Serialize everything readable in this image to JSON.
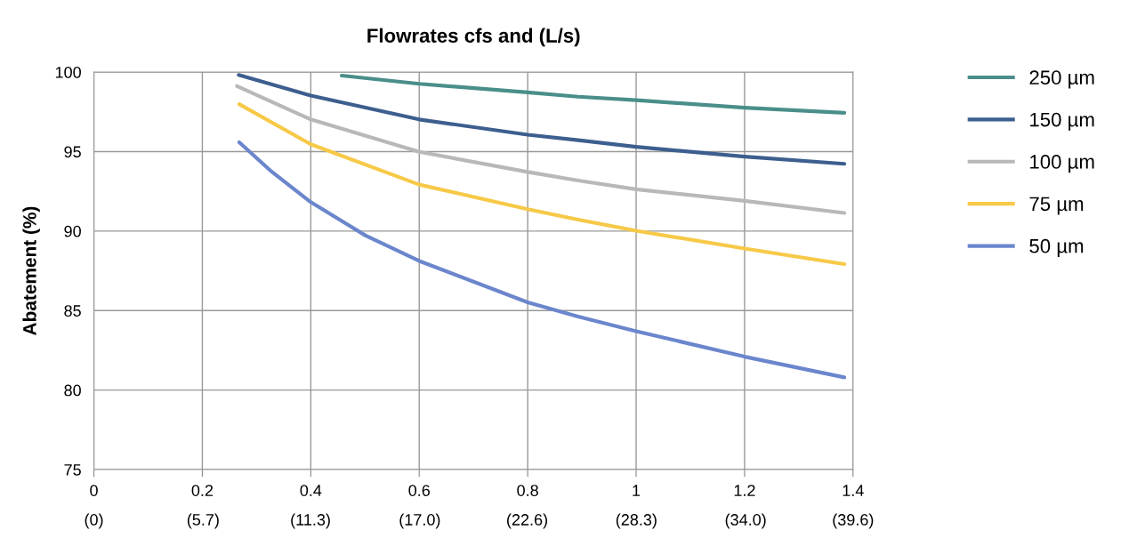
{
  "chart_data": {
    "type": "line",
    "title": "Flowrates cfs and (L/s)",
    "ylabel": "Abatement (%)",
    "xlim": [
      0,
      1.4
    ],
    "xticks": [
      0,
      0.2,
      0.4,
      0.6,
      0.8,
      1,
      1.2,
      1.4
    ],
    "x2lim": [
      0,
      39.6
    ],
    "x2ticks": [
      {
        "value": 0,
        "label": "(0)"
      },
      {
        "value": 5.7,
        "label": "(5.7)"
      },
      {
        "value": 11.3,
        "label": "(11.3)"
      },
      {
        "value": 17.0,
        "label": "(17.0)"
      },
      {
        "value": 22.6,
        "label": "(22.6)"
      },
      {
        "value": 28.3,
        "label": "(28.3)"
      },
      {
        "value": 34.0,
        "label": "(34.0)"
      },
      {
        "value": 39.6,
        "label": "(39.6)"
      }
    ],
    "ylim": [
      75,
      100
    ],
    "yticks": [
      75,
      80,
      85,
      90,
      95,
      100
    ],
    "grid": true,
    "legend": "top right",
    "marker": "none",
    "line_style": "solid",
    "series": [
      {
        "name": "250 µm",
        "color": "#4a8e8a",
        "x": [
          0.457,
          0.6,
          0.8,
          0.893,
          1.0,
          1.2,
          1.384
        ],
        "values": [
          99.78,
          99.26,
          98.72,
          98.45,
          98.23,
          97.76,
          97.44
        ]
      },
      {
        "name": "150 µm",
        "color": "#3d5f8f",
        "x": [
          0.267,
          0.4,
          0.6,
          0.8,
          0.893,
          1.0,
          1.2,
          1.384
        ],
        "values": [
          99.82,
          98.52,
          97.02,
          96.06,
          95.72,
          95.3,
          94.68,
          94.23
        ]
      },
      {
        "name": "100 µm",
        "color": "#b8b8b8",
        "x": [
          0.264,
          0.4,
          0.6,
          0.8,
          0.893,
          1.0,
          1.2,
          1.384
        ],
        "values": [
          99.12,
          97.02,
          94.98,
          93.72,
          93.18,
          92.63,
          91.9,
          91.14
        ]
      },
      {
        "name": "75 µm",
        "color": "#f7c948",
        "x": [
          0.268,
          0.4,
          0.6,
          0.8,
          0.893,
          1.0,
          1.2,
          1.384
        ],
        "values": [
          97.98,
          95.46,
          92.92,
          91.38,
          90.72,
          90.02,
          88.9,
          87.92
        ]
      },
      {
        "name": "50 µm",
        "color": "#6b86cc",
        "x": [
          0.268,
          0.325,
          0.4,
          0.501,
          0.6,
          0.8,
          0.893,
          1.0,
          1.2,
          1.384
        ],
        "values": [
          95.58,
          93.82,
          91.82,
          89.72,
          88.12,
          85.52,
          84.62,
          83.7,
          82.1,
          80.8
        ]
      }
    ]
  }
}
